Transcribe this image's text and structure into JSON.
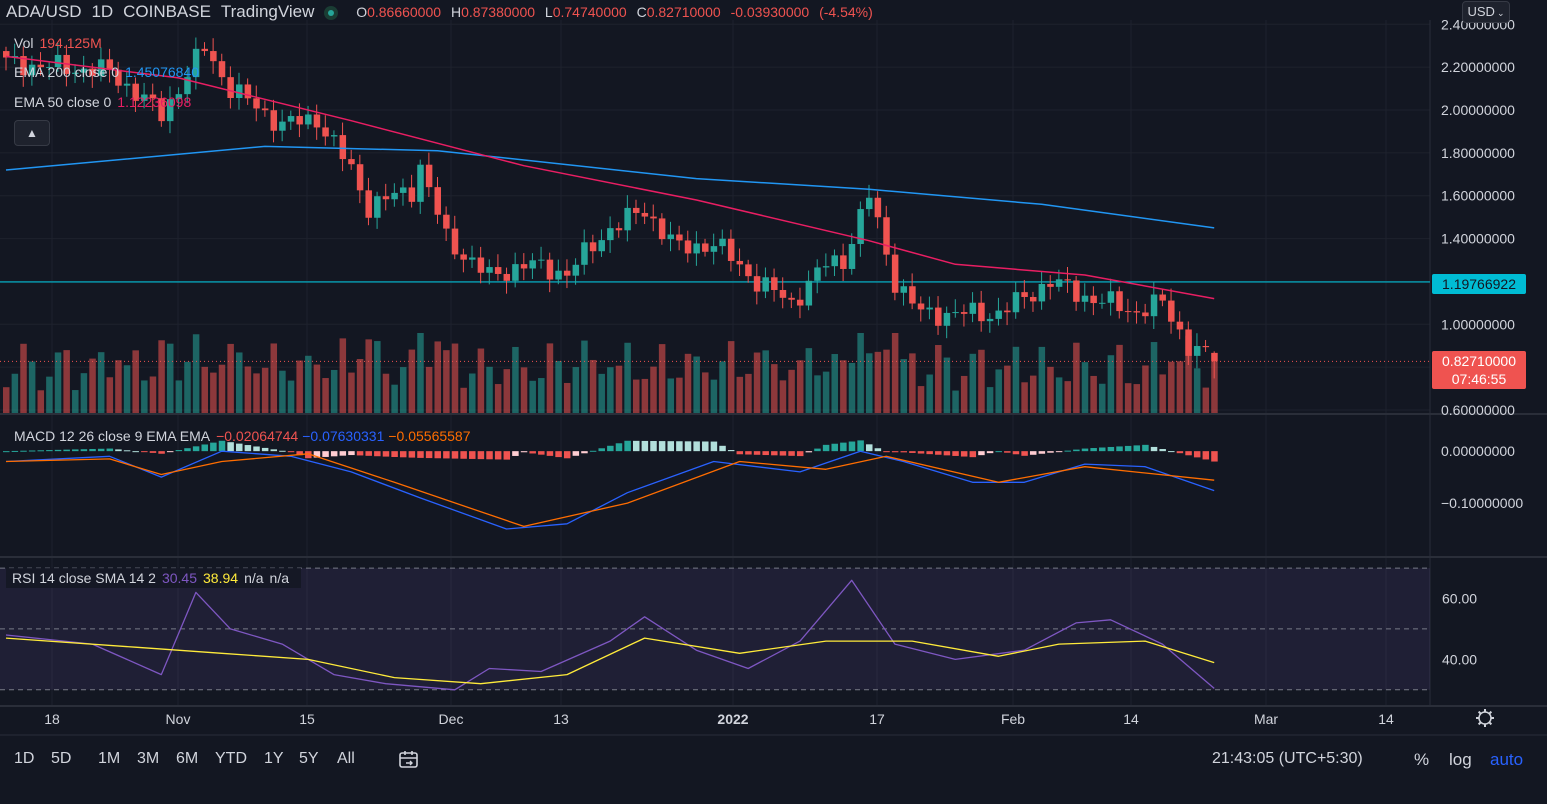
{
  "header": {
    "symbol": "ADA/USD",
    "interval": "1D",
    "exchange": "COINBASE",
    "brand": "TradingView",
    "open_label": "O",
    "open": "0.86660000",
    "high_label": "H",
    "high": "0.87380000",
    "low_label": "L",
    "low": "0.74740000",
    "close_label": "C",
    "close": "0.82710000",
    "change": "-0.03930000",
    "change_pct": "(-4.54%)",
    "currency": "USD"
  },
  "legend": {
    "vol_label": "Vol",
    "vol_value": "194.125M",
    "ema200_label": "EMA 200 close 0",
    "ema200_value": "1.45076840",
    "ema50_label": "EMA 50 close 0",
    "ema50_value": "1.12236098",
    "collapse_icon": "chevron-up-icon"
  },
  "price_axis": {
    "ticks": [
      "2.40000000",
      "2.20000000",
      "2.00000000",
      "1.80000000",
      "1.60000000",
      "1.40000000",
      "1.00000000",
      "0.60000000"
    ],
    "hline_label": "1.19766922",
    "last_price_label": "0.82710000",
    "countdown": "07:46:55"
  },
  "macd": {
    "label": "MACD 12 26 close 9 EMA EMA",
    "hist": "−0.02064744",
    "macd": "−0.07630331",
    "signal": "−0.05565587",
    "ticks": [
      "0.00000000",
      "−0.10000000"
    ]
  },
  "rsi": {
    "label": "RSI 14 close SMA 14 2",
    "value": "30.45",
    "sma": "38.94",
    "na1": "n/a",
    "na2": "n/a",
    "ticks": [
      "60.00",
      "40.00"
    ]
  },
  "time_axis": {
    "ticks": [
      "18",
      "Nov",
      "15",
      "Dec",
      "13",
      "2022",
      "17",
      "Feb",
      "14",
      "Mar",
      "14"
    ],
    "settings_icon": "gear-icon"
  },
  "toolbar": {
    "ranges": [
      "1D",
      "5D",
      "1M",
      "3M",
      "6M",
      "YTD",
      "1Y",
      "5Y",
      "All"
    ],
    "calendar_icon": "calendar-range-icon",
    "clock": "21:43:05 (UTC+5:30)",
    "percent": "%",
    "log": "log",
    "auto": "auto"
  },
  "colors": {
    "bg": "#131722",
    "up": "#26a69a",
    "down": "#ef5350",
    "ema200": "#2196f3",
    "ema50": "#e91e63",
    "hline": "#00bcd4",
    "macd": "#2962ff",
    "signal": "#ff6d00",
    "rsi": "#7e57c2",
    "rsi_ma": "#ffeb3b",
    "accent": "#2962ff"
  },
  "chart_data": {
    "type": "candlestick",
    "symbol": "ADA/USD",
    "timeframe": "1D",
    "x_ticks": [
      "18",
      "Nov",
      "15",
      "Dec",
      "13",
      "2022",
      "17",
      "Feb",
      "14",
      "Mar",
      "14"
    ],
    "price_ylim": [
      0.6,
      2.42
    ],
    "horizontal_line": 1.19766922,
    "last": {
      "open": 0.8666,
      "high": 0.8738,
      "low": 0.7474,
      "close": 0.8271,
      "change": -0.0393,
      "change_pct": -4.54,
      "volume": "194.125M"
    },
    "anchors": [
      {
        "i": 0,
        "close": 2.22
      },
      {
        "i": 12,
        "close": 2.18
      },
      {
        "i": 18,
        "close": 1.98
      },
      {
        "i": 23,
        "close": 2.29
      },
      {
        "i": 26,
        "close": 2.1
      },
      {
        "i": 32,
        "close": 1.93
      },
      {
        "i": 36,
        "close": 1.96
      },
      {
        "i": 40,
        "close": 1.72
      },
      {
        "i": 42,
        "close": 1.55
      },
      {
        "i": 47,
        "close": 1.63
      },
      {
        "i": 48,
        "close": 1.74
      },
      {
        "i": 51,
        "close": 1.4
      },
      {
        "i": 56,
        "close": 1.22
      },
      {
        "i": 60,
        "close": 1.28
      },
      {
        "i": 65,
        "close": 1.24
      },
      {
        "i": 70,
        "close": 1.45
      },
      {
        "i": 74,
        "close": 1.53
      },
      {
        "i": 78,
        "close": 1.35
      },
      {
        "i": 82,
        "close": 1.38
      },
      {
        "i": 87,
        "close": 1.2
      },
      {
        "i": 91,
        "close": 1.1
      },
      {
        "i": 95,
        "close": 1.28
      },
      {
        "i": 97,
        "close": 1.3
      },
      {
        "i": 100,
        "close": 1.6
      },
      {
        "i": 103,
        "close": 1.2
      },
      {
        "i": 106,
        "close": 1.05
      },
      {
        "i": 110,
        "close": 1.05
      },
      {
        "i": 115,
        "close": 1.05
      },
      {
        "i": 121,
        "close": 1.2
      },
      {
        "i": 125,
        "close": 1.13
      },
      {
        "i": 131,
        "close": 1.06
      },
      {
        "i": 134,
        "close": 1.1
      },
      {
        "i": 137,
        "close": 0.9
      },
      {
        "i": 140,
        "close": 0.83
      }
    ],
    "ema200": [
      [
        0,
        1.72
      ],
      [
        30,
        1.83
      ],
      [
        50,
        1.81
      ],
      [
        80,
        1.68
      ],
      [
        100,
        1.63
      ],
      [
        120,
        1.56
      ],
      [
        140,
        1.45
      ]
    ],
    "ema50": [
      [
        0,
        2.25
      ],
      [
        20,
        2.15
      ],
      [
        40,
        1.95
      ],
      [
        60,
        1.74
      ],
      [
        80,
        1.58
      ],
      [
        100,
        1.39
      ],
      [
        110,
        1.28
      ],
      [
        125,
        1.23
      ],
      [
        140,
        1.12
      ]
    ],
    "macd_ylim": [
      -0.2,
      0.06
    ],
    "macd_line": [
      [
        0,
        -0.02
      ],
      [
        12,
        -0.01
      ],
      [
        18,
        -0.05
      ],
      [
        25,
        0.0
      ],
      [
        33,
        -0.01
      ],
      [
        40,
        -0.04
      ],
      [
        48,
        -0.09
      ],
      [
        58,
        -0.15
      ],
      [
        65,
        -0.14
      ],
      [
        72,
        -0.08
      ],
      [
        82,
        -0.02
      ],
      [
        92,
        -0.04
      ],
      [
        99,
        0.0
      ],
      [
        104,
        -0.02
      ],
      [
        112,
        -0.06
      ],
      [
        118,
        -0.06
      ],
      [
        125,
        -0.025
      ],
      [
        132,
        -0.03
      ],
      [
        140,
        -0.076
      ]
    ],
    "signal_line": [
      [
        0,
        -0.02
      ],
      [
        12,
        -0.015
      ],
      [
        18,
        -0.045
      ],
      [
        25,
        -0.02
      ],
      [
        35,
        -0.005
      ],
      [
        45,
        -0.06
      ],
      [
        60,
        -0.145
      ],
      [
        72,
        -0.1
      ],
      [
        85,
        -0.02
      ],
      [
        95,
        -0.035
      ],
      [
        102,
        -0.01
      ],
      [
        115,
        -0.06
      ],
      [
        125,
        -0.03
      ],
      [
        140,
        -0.056
      ]
    ],
    "rsi_ylim": [
      25,
      72
    ],
    "rsi": [
      [
        0,
        48
      ],
      [
        10,
        45
      ],
      [
        18,
        35
      ],
      [
        22,
        62
      ],
      [
        26,
        50
      ],
      [
        32,
        45
      ],
      [
        38,
        35
      ],
      [
        44,
        32
      ],
      [
        52,
        30
      ],
      [
        56,
        37
      ],
      [
        62,
        36
      ],
      [
        70,
        46
      ],
      [
        74,
        54
      ],
      [
        80,
        43
      ],
      [
        86,
        37
      ],
      [
        92,
        46
      ],
      [
        98,
        66
      ],
      [
        103,
        45
      ],
      [
        110,
        40
      ],
      [
        118,
        43
      ],
      [
        124,
        52
      ],
      [
        128,
        53
      ],
      [
        134,
        45
      ],
      [
        140,
        30.45
      ]
    ],
    "rsi_ma": [
      [
        0,
        47
      ],
      [
        15,
        44
      ],
      [
        25,
        42
      ],
      [
        35,
        40
      ],
      [
        45,
        34
      ],
      [
        55,
        32
      ],
      [
        65,
        35
      ],
      [
        74,
        47
      ],
      [
        85,
        42
      ],
      [
        95,
        46
      ],
      [
        105,
        46
      ],
      [
        115,
        41
      ],
      [
        122,
        45
      ],
      [
        132,
        46
      ],
      [
        140,
        38.94
      ]
    ],
    "rsi_bands": [
      70,
      50,
      30
    ]
  }
}
